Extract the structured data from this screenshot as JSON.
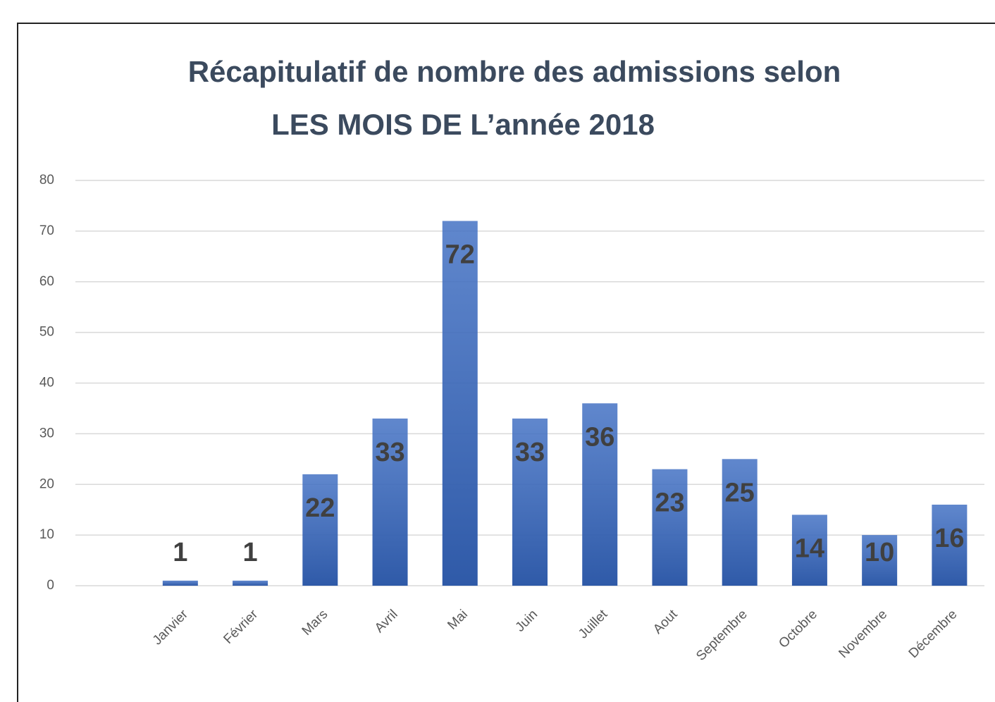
{
  "chart_data": {
    "type": "bar",
    "title": [
      "Récapitulatif de nombre des admissions selon",
      "LES MOIS DE L’année 2018"
    ],
    "categories": [
      null,
      "Janvier",
      "Février",
      "Mars",
      "Avril",
      "Mai",
      "Juin",
      "Juillet",
      "Aout",
      "Septembre",
      "Octobre",
      "Novembre",
      "Décembre"
    ],
    "values": [
      null,
      1,
      1,
      22,
      33,
      72,
      33,
      36,
      23,
      25,
      14,
      10,
      16
    ],
    "color": "#4472c4",
    "ylim": [
      0,
      80
    ],
    "yticks": [
      0,
      10,
      20,
      30,
      40,
      50,
      60,
      70,
      80
    ],
    "grid": true
  }
}
